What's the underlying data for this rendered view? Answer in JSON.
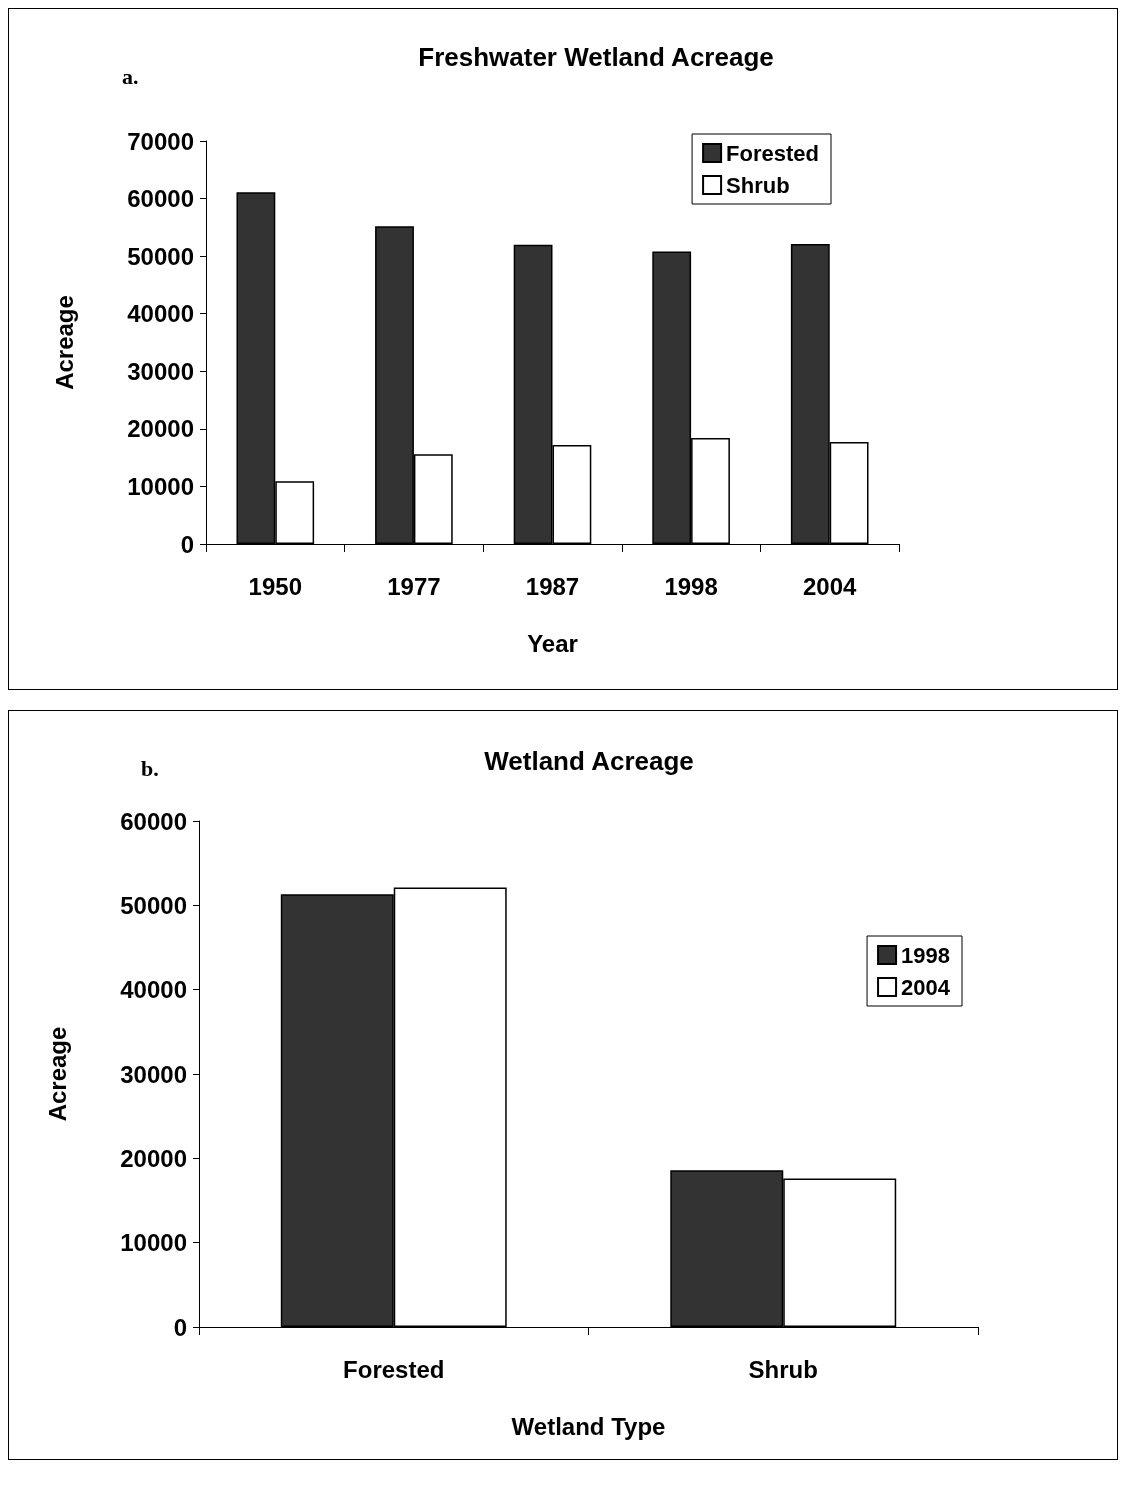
{
  "chart_data": [
    {
      "type": "bar",
      "title": "Freshwater Wetland Acreage",
      "annotations": [
        "a."
      ],
      "xlabel": "Year",
      "ylabel": "Acreage",
      "categories": [
        "1950",
        "1977",
        "1987",
        "1998",
        "2004"
      ],
      "series": [
        {
          "name": "Forested",
          "color": "#333333",
          "values": [
            61100,
            55200,
            52000,
            50800,
            52100
          ]
        },
        {
          "name": "Shrub",
          "color": "#ffffff",
          "values": [
            10900,
            15600,
            17200,
            18400,
            17700
          ]
        }
      ],
      "ylim": [
        0,
        70000
      ],
      "yticks": [
        0,
        10000,
        20000,
        30000,
        40000,
        50000,
        60000,
        70000
      ],
      "grid": false,
      "legend": "top right"
    },
    {
      "type": "bar",
      "title": "Wetland Acreage",
      "annotations": [
        "b."
      ],
      "xlabel": "Wetland Type",
      "ylabel": "Acreage",
      "categories": [
        "Forested",
        "Shrub"
      ],
      "series": [
        {
          "name": "1998",
          "color": "#333333",
          "values": [
            51300,
            18600
          ]
        },
        {
          "name": "2004",
          "color": "#ffffff",
          "values": [
            52100,
            17600
          ]
        }
      ],
      "ylim": [
        0,
        60000
      ],
      "yticks": [
        0,
        10000,
        20000,
        30000,
        40000,
        50000,
        60000
      ],
      "grid": false,
      "legend": "right"
    }
  ]
}
